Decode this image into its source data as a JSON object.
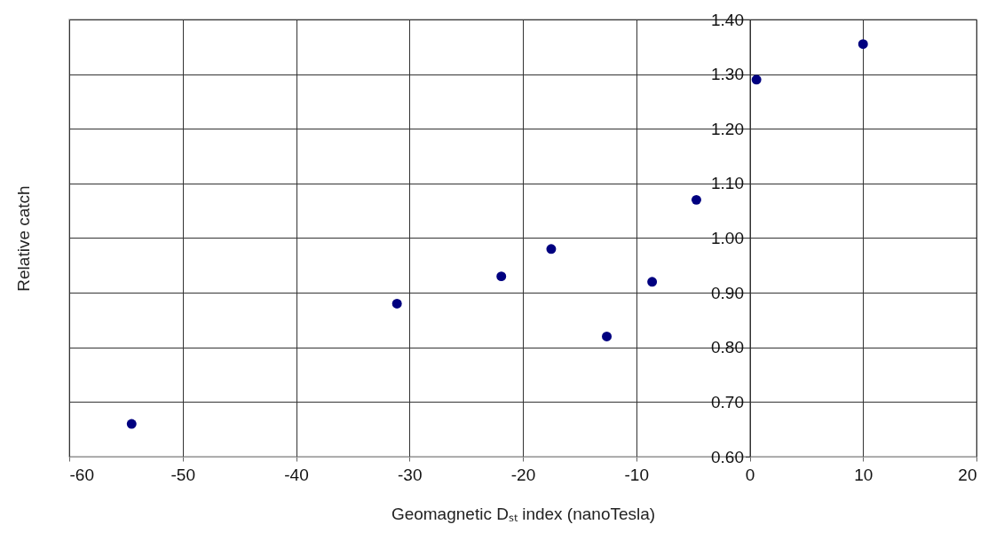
{
  "chart_data": {
    "type": "scatter",
    "xlabel": "Geomagnetic Dₛₜ index (nanoTesla)",
    "ylabel": "Relative catch",
    "x": [
      -54.5,
      -31.1,
      -21.9,
      -17.5,
      -12.6,
      -8.6,
      -4.7,
      0.6,
      10
    ],
    "series": [
      {
        "color": "#000080",
        "values": [
          0.66,
          0.88,
          0.93,
          0.98,
          0.82,
          0.92,
          1.07,
          1.29,
          1.355
        ]
      }
    ],
    "xlim": [
      -60,
      20
    ],
    "xticks": [
      -60,
      -50,
      -40,
      -30,
      -20,
      -10,
      0,
      10,
      20
    ],
    "ylim": [
      0.6,
      1.4
    ],
    "yticks": [
      {
        "value": 0.6,
        "label": "0.60"
      },
      {
        "value": 0.7,
        "label": "0.70"
      },
      {
        "value": 0.8,
        "label": "0.80"
      },
      {
        "value": 0.9,
        "label": "0.90"
      },
      {
        "value": 1.0,
        "label": "1.00"
      },
      {
        "value": 1.1,
        "label": "1.10"
      },
      {
        "value": 1.2,
        "label": "1.20"
      },
      {
        "value": 1.3,
        "label": "1.30"
      },
      {
        "value": 1.4,
        "label": "1.40"
      }
    ],
    "grid": true,
    "marker": "circle"
  }
}
